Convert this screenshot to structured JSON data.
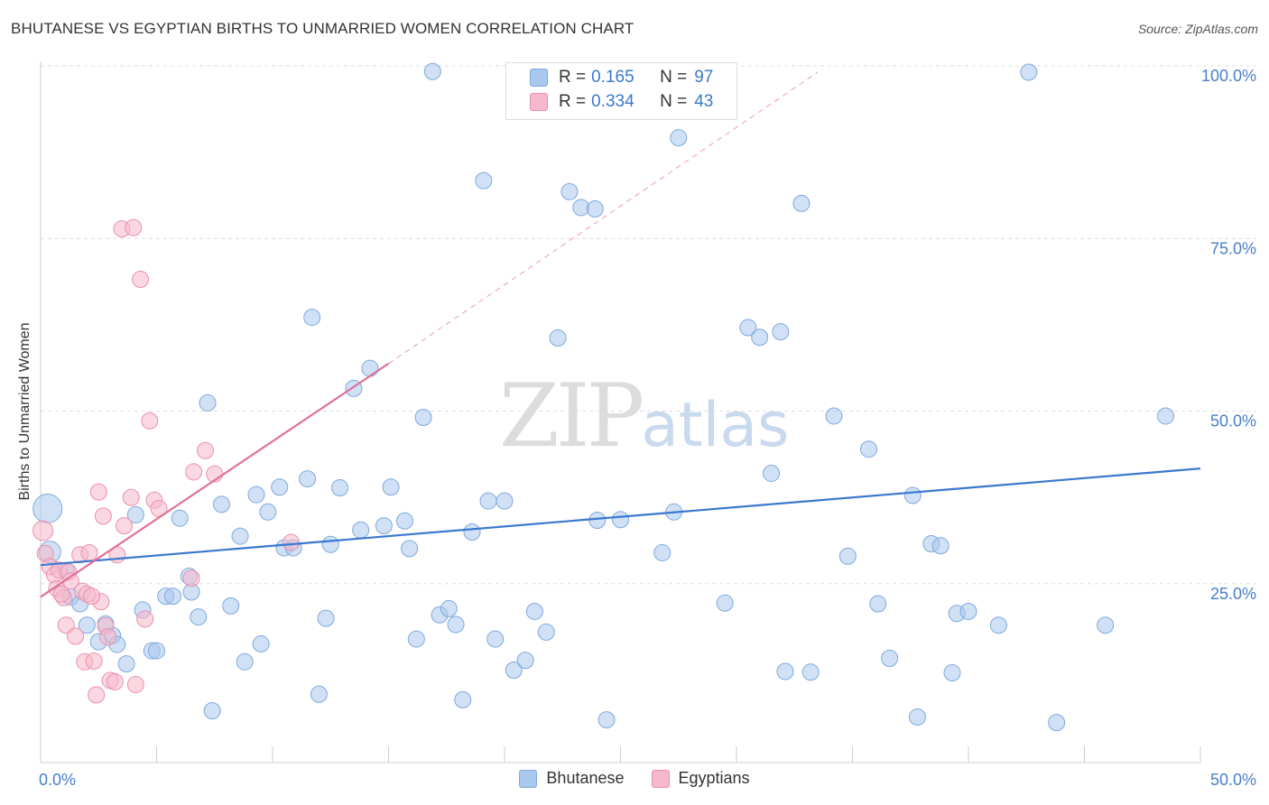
{
  "header": {
    "title": "BHUTANESE VS EGYPTIAN BIRTHS TO UNMARRIED WOMEN CORRELATION CHART",
    "source": "Source: ZipAtlas.com"
  },
  "watermark": {
    "zip": "ZIP",
    "atlas": "atlas"
  },
  "legend": {
    "rows": [
      {
        "r_label": "R =",
        "r_value": "0.165",
        "n_label": "N =",
        "n_value": "97",
        "color": "#a9c8ee"
      },
      {
        "r_label": "R =",
        "r_value": "0.334",
        "n_label": "N =",
        "n_value": "43",
        "color": "#f6b8cb"
      }
    ]
  },
  "bottom_legend": [
    {
      "label": "Bhutanese",
      "color": "#a9c8ee"
    },
    {
      "label": "Egyptians",
      "color": "#f6b8cb"
    }
  ],
  "chart_data": {
    "type": "scatter",
    "title": "BHUTANESE VS EGYPTIAN BIRTHS TO UNMARRIED WOMEN CORRELATION CHART",
    "xlabel": "",
    "ylabel": "Births to Unmarried Women",
    "xlim": [
      0,
      50
    ],
    "ylim": [
      0,
      100
    ],
    "x_tick_labels": [
      "0.0%",
      "50.0%"
    ],
    "y_tick_labels": [
      "25.0%",
      "50.0%",
      "75.0%",
      "100.0%"
    ],
    "y_ticks": [
      25,
      50,
      75,
      100
    ],
    "grid": true,
    "colors": {
      "Bhutanese": "#3a78d0",
      "Egyptians": "#e0709a"
    },
    "series": [
      {
        "name": "Bhutanese",
        "fill": "#a9c8ee",
        "stroke": "#7ea8dd",
        "trend": {
          "x": [
            0,
            50
          ],
          "y": [
            28.6,
            42.6
          ]
        },
        "points": [
          [
            0.3,
            36.8,
            16
          ],
          [
            0.4,
            30.5,
            12
          ],
          [
            1.1,
            27.8,
            9
          ],
          [
            1.3,
            24.0,
            9
          ],
          [
            1.7,
            23.0,
            9
          ],
          [
            2.0,
            19.9,
            9
          ],
          [
            2.5,
            17.5,
            9
          ],
          [
            2.8,
            20.1,
            9
          ],
          [
            3.1,
            18.4,
            9
          ],
          [
            3.3,
            17.1,
            9
          ],
          [
            3.7,
            14.3,
            9
          ],
          [
            4.1,
            35.9,
            9
          ],
          [
            4.4,
            22.1,
            9
          ],
          [
            4.8,
            16.2,
            9
          ],
          [
            5.0,
            16.2,
            9
          ],
          [
            5.4,
            24.1,
            9
          ],
          [
            5.7,
            24.1,
            9
          ],
          [
            6.0,
            35.4,
            9
          ],
          [
            6.4,
            27.0,
            9
          ],
          [
            6.5,
            24.7,
            9
          ],
          [
            6.8,
            21.1,
            9
          ],
          [
            7.2,
            52.1,
            9
          ],
          [
            7.4,
            7.5,
            9
          ],
          [
            7.8,
            37.4,
            9
          ],
          [
            8.2,
            22.7,
            9
          ],
          [
            8.6,
            32.8,
            9
          ],
          [
            8.8,
            14.6,
            9
          ],
          [
            9.3,
            38.8,
            9
          ],
          [
            9.5,
            17.2,
            9
          ],
          [
            9.8,
            36.3,
            9
          ],
          [
            10.3,
            39.9,
            9
          ],
          [
            10.5,
            31.1,
            9
          ],
          [
            10.9,
            31.1,
            9
          ],
          [
            11.5,
            41.1,
            9
          ],
          [
            11.7,
            64.5,
            9
          ],
          [
            12.0,
            9.9,
            9
          ],
          [
            12.3,
            20.9,
            9
          ],
          [
            12.5,
            31.6,
            9
          ],
          [
            12.9,
            39.8,
            9
          ],
          [
            13.5,
            54.2,
            9
          ],
          [
            13.8,
            33.7,
            9
          ],
          [
            14.2,
            57.1,
            9
          ],
          [
            14.8,
            34.3,
            9
          ],
          [
            15.1,
            39.9,
            9
          ],
          [
            15.7,
            35.0,
            9
          ],
          [
            15.9,
            31.0,
            9
          ],
          [
            16.2,
            17.9,
            9
          ],
          [
            16.5,
            50.0,
            9
          ],
          [
            16.9,
            100.1,
            9
          ],
          [
            17.2,
            21.4,
            9
          ],
          [
            17.6,
            22.3,
            9
          ],
          [
            17.9,
            20.0,
            9
          ],
          [
            18.2,
            9.1,
            9
          ],
          [
            18.6,
            33.4,
            9
          ],
          [
            19.1,
            84.3,
            9
          ],
          [
            19.3,
            37.9,
            9
          ],
          [
            19.6,
            17.9,
            9
          ],
          [
            20.0,
            37.9,
            9
          ],
          [
            20.4,
            13.4,
            9
          ],
          [
            20.9,
            14.8,
            9
          ],
          [
            21.3,
            21.9,
            9
          ],
          [
            21.8,
            18.9,
            9
          ],
          [
            22.3,
            61.5,
            9
          ],
          [
            22.8,
            82.7,
            9
          ],
          [
            23.3,
            80.4,
            9
          ],
          [
            23.9,
            80.2,
            9
          ],
          [
            24.0,
            35.1,
            9
          ],
          [
            24.4,
            6.2,
            9
          ],
          [
            25.0,
            35.2,
            9
          ],
          [
            26.8,
            30.4,
            9
          ],
          [
            27.3,
            36.3,
            9
          ],
          [
            27.5,
            90.5,
            9
          ],
          [
            29.5,
            23.1,
            9
          ],
          [
            30.5,
            63.0,
            9
          ],
          [
            31.0,
            61.6,
            9
          ],
          [
            31.5,
            41.9,
            9
          ],
          [
            31.9,
            62.4,
            9
          ],
          [
            32.1,
            13.2,
            9
          ],
          [
            32.8,
            81.0,
            9
          ],
          [
            33.2,
            13.1,
            9
          ],
          [
            34.2,
            50.2,
            9
          ],
          [
            34.8,
            29.9,
            9
          ],
          [
            35.7,
            45.4,
            9
          ],
          [
            36.1,
            23.0,
            9
          ],
          [
            36.6,
            15.1,
            9
          ],
          [
            37.6,
            38.7,
            9
          ],
          [
            37.8,
            6.6,
            9
          ],
          [
            38.4,
            31.7,
            9
          ],
          [
            38.8,
            31.4,
            9
          ],
          [
            39.3,
            13.0,
            9
          ],
          [
            39.5,
            21.6,
            9
          ],
          [
            40.0,
            21.9,
            9
          ],
          [
            41.3,
            19.9,
            9
          ],
          [
            42.6,
            100.0,
            9
          ],
          [
            43.8,
            5.8,
            9
          ],
          [
            45.9,
            19.9,
            9
          ],
          [
            48.5,
            50.2,
            9
          ]
        ]
      },
      {
        "name": "Egyptians",
        "fill": "#f6b8cb",
        "stroke": "#ec8fad",
        "trend": {
          "x": [
            0,
            15
          ],
          "y": [
            24.0,
            57.8
          ]
        },
        "trend_extension": {
          "x": [
            15,
            33.5
          ],
          "y": [
            57.8,
            100
          ]
        },
        "points": [
          [
            0.1,
            33.6,
            11
          ],
          [
            0.2,
            30.3,
            9
          ],
          [
            0.4,
            28.4,
            9
          ],
          [
            0.6,
            27.2,
            9
          ],
          [
            0.7,
            25.2,
            9
          ],
          [
            0.8,
            27.9,
            9
          ],
          [
            1.0,
            23.9,
            9
          ],
          [
            1.1,
            19.9,
            9
          ],
          [
            1.2,
            27.6,
            9
          ],
          [
            1.3,
            26.3,
            9
          ],
          [
            1.5,
            18.3,
            9
          ],
          [
            1.7,
            30.1,
            9
          ],
          [
            1.8,
            24.8,
            9
          ],
          [
            1.9,
            14.6,
            9
          ],
          [
            2.0,
            24.4,
            9
          ],
          [
            2.1,
            30.4,
            9
          ],
          [
            2.3,
            14.7,
            9
          ],
          [
            2.4,
            9.8,
            9
          ],
          [
            2.5,
            39.2,
            9
          ],
          [
            2.6,
            23.3,
            9
          ],
          [
            2.7,
            35.7,
            9
          ],
          [
            2.8,
            19.8,
            9
          ],
          [
            2.9,
            18.2,
            9
          ],
          [
            3.0,
            11.9,
            9
          ],
          [
            3.2,
            11.7,
            9
          ],
          [
            3.3,
            30.1,
            9
          ],
          [
            3.5,
            77.3,
            9
          ],
          [
            3.6,
            34.3,
            9
          ],
          [
            3.9,
            38.4,
            9
          ],
          [
            4.0,
            77.5,
            9
          ],
          [
            4.1,
            11.3,
            9
          ],
          [
            4.3,
            70.0,
            9
          ],
          [
            4.5,
            20.8,
            9
          ],
          [
            4.7,
            49.5,
            9
          ],
          [
            4.9,
            38.0,
            9
          ],
          [
            5.1,
            36.8,
            9
          ],
          [
            6.5,
            26.7,
            9
          ],
          [
            6.6,
            42.1,
            9
          ],
          [
            7.1,
            45.2,
            9
          ],
          [
            7.5,
            41.8,
            9
          ],
          [
            10.8,
            31.9,
            9
          ],
          [
            0.9,
            24.4,
            9
          ],
          [
            2.2,
            24.1,
            9
          ]
        ]
      }
    ]
  }
}
